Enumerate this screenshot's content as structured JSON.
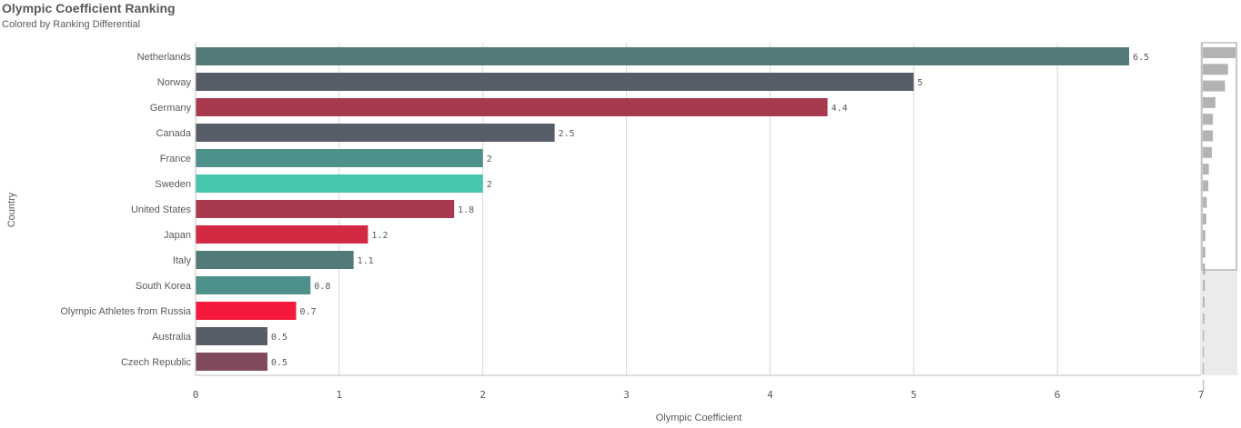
{
  "header": {
    "title": "Olympic Coefficient Ranking",
    "subtitle": "Colored by Ranking Differential"
  },
  "chart_data": {
    "type": "bar",
    "orientation": "horizontal",
    "title": "Olympic Coefficient Ranking",
    "subtitle": "Colored by Ranking Differential",
    "xlabel": "Olympic Coefficient",
    "ylabel": "Country",
    "xlim": [
      0,
      7
    ],
    "xticks": [
      "0",
      "1",
      "2",
      "3",
      "4",
      "5",
      "6",
      "7"
    ],
    "grid": true,
    "categories": [
      "Netherlands",
      "Norway",
      "Germany",
      "Canada",
      "France",
      "Sweden",
      "United States",
      "Japan",
      "Italy",
      "South Korea",
      "Olympic Athletes from Russia",
      "Australia",
      "Czech Republic"
    ],
    "values": [
      6.5,
      5,
      4.4,
      2.5,
      2,
      2,
      1.8,
      1.2,
      1.1,
      0.8,
      0.7,
      0.5,
      0.5
    ],
    "value_labels": [
      "6.5",
      "5",
      "4.4",
      "2.5",
      "2",
      "2",
      "1.8",
      "1.2",
      "1.1",
      "0.8",
      "0.7",
      "0.5",
      "0.5"
    ],
    "colors": [
      "#527a78",
      "#575c69",
      "#a83a4f",
      "#575c69",
      "#4e918a",
      "#46c6ad",
      "#a83a4f",
      "#d12a42",
      "#527a78",
      "#4e918a",
      "#f51a3c",
      "#575c69",
      "#804a5a"
    ],
    "minimap_values": [
      6.5,
      5,
      4.4,
      2.5,
      2,
      2,
      1.8,
      1.2,
      1.1,
      0.8,
      0.7,
      0.5,
      0.5,
      0.45,
      0.4,
      0.35,
      0.3,
      0.25,
      0.2,
      0.18,
      0.15
    ]
  }
}
